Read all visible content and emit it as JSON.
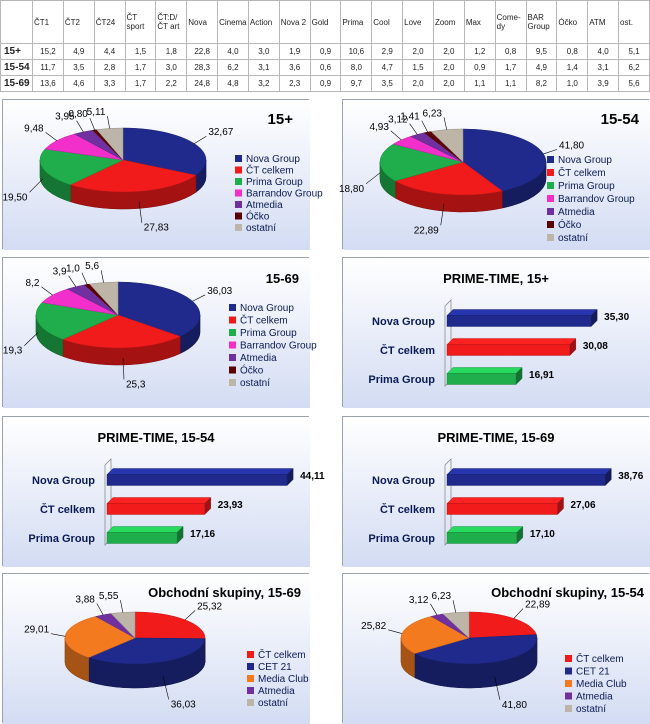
{
  "table": {
    "columns": [
      "",
      "ČT1",
      "ČT2",
      "ČT24",
      "ČT sport",
      "ČT:D/ ČT art",
      "Nova",
      "Cinema",
      "Action",
      "Nova 2",
      "Gold",
      "Prima",
      "Cool",
      "Love",
      "Zoom",
      "Max",
      "Come- dy",
      "BAR Group",
      "Óčko",
      "ATM",
      "ost."
    ],
    "rows": [
      {
        "label": "15+",
        "values": [
          "15,2",
          "4,9",
          "4,4",
          "1,5",
          "1,8",
          "22,8",
          "4,0",
          "3,0",
          "1,9",
          "0,9",
          "10,6",
          "2,9",
          "2,0",
          "2,0",
          "1,2",
          "0,8",
          "9,5",
          "0,8",
          "4,0",
          "5,1"
        ]
      },
      {
        "label": "15-54",
        "values": [
          "11,7",
          "3,5",
          "2,8",
          "1,7",
          "3,0",
          "28,3",
          "6,2",
          "3,1",
          "3,6",
          "0,6",
          "8,0",
          "4,7",
          "1,5",
          "2,0",
          "0,9",
          "1,7",
          "4,9",
          "1,4",
          "3,1",
          "6,2"
        ]
      },
      {
        "label": "15-69",
        "values": [
          "13,6",
          "4,6",
          "3,3",
          "1,7",
          "2,2",
          "24,8",
          "4,8",
          "3,2",
          "2,3",
          "0,9",
          "9,7",
          "3,5",
          "2,0",
          "2,0",
          "1,1",
          "1,1",
          "8,2",
          "1,0",
          "3,9",
          "5,6"
        ]
      }
    ]
  },
  "colors": {
    "nova": "#1f2a8c",
    "ct": "#f21b1b",
    "prima": "#1fae4b",
    "barrandov": "#f22ecb",
    "atmedia": "#7030a0",
    "ocko": "#5a0000",
    "ostatni": "#bdb5a8",
    "media_club": "#f47a20"
  },
  "chart_data": [
    {
      "type": "pie",
      "title": "15+",
      "labels": [
        "Nova Group",
        "ČT celkem",
        "Prima Group",
        "Barrandov Group",
        "Atmedia",
        "Óčko",
        "ostatní"
      ],
      "color_keys": [
        "nova",
        "ct",
        "prima",
        "barrandov",
        "atmedia",
        "ocko",
        "ostatni"
      ],
      "values": [
        32.67,
        27.83,
        19.5,
        9.48,
        3.95,
        0.8,
        5.11
      ],
      "value_labels": [
        "32,67",
        "27,83",
        "19,50",
        "9,48",
        "3,95",
        "0,80",
        "5,11"
      ],
      "legend": "right"
    },
    {
      "type": "pie",
      "title": "15-54",
      "labels": [
        "Nova Group",
        "ČT celkem",
        "Prima Group",
        "Barrandov Group",
        "Atmedia",
        "Óčko",
        "ostatní"
      ],
      "color_keys": [
        "nova",
        "ct",
        "prima",
        "barrandov",
        "atmedia",
        "ocko",
        "ostatni"
      ],
      "values": [
        41.8,
        22.89,
        18.8,
        4.93,
        3.12,
        1.41,
        6.23
      ],
      "value_labels": [
        "41,80",
        "22,89",
        "18,80",
        "4,93",
        "3,12",
        "1,41",
        "6,23"
      ],
      "legend": "right"
    },
    {
      "type": "pie",
      "title": "15-69",
      "labels": [
        "Nova Group",
        "ČT celkem",
        "Prima Group",
        "Barrandov Group",
        "Atmedia",
        "Óčko",
        "ostatní"
      ],
      "color_keys": [
        "nova",
        "ct",
        "prima",
        "barrandov",
        "atmedia",
        "ocko",
        "ostatni"
      ],
      "values": [
        36.03,
        25.3,
        19.3,
        8.2,
        3.9,
        1.0,
        5.6
      ],
      "value_labels": [
        "36,03",
        "25,3",
        "19,3",
        "8,2",
        "3,9",
        "1,0",
        "5,6"
      ],
      "legend": "right"
    },
    {
      "type": "bar",
      "title": "PRIME-TIME,  15+",
      "categories": [
        "Nova Group",
        "ČT celkem",
        "Prima Group"
      ],
      "color_keys": [
        "nova",
        "ct",
        "prima"
      ],
      "values": [
        35.3,
        30.08,
        16.91
      ],
      "value_labels": [
        "35,30",
        "30,08",
        "16,91"
      ],
      "xlim": [
        0,
        48
      ]
    },
    {
      "type": "bar",
      "title": "PRIME-TIME,  15-54",
      "categories": [
        "Nova Group",
        "ČT celkem",
        "Prima Group"
      ],
      "color_keys": [
        "nova",
        "ct",
        "prima"
      ],
      "values": [
        44.11,
        23.93,
        17.16
      ],
      "value_labels": [
        "44,11",
        "23,93",
        "17,16"
      ],
      "xlim": [
        0,
        48
      ]
    },
    {
      "type": "bar",
      "title": "PRIME-TIME,  15-69",
      "categories": [
        "Nova Group",
        "ČT celkem",
        "Prima Group"
      ],
      "color_keys": [
        "nova",
        "ct",
        "prima"
      ],
      "values": [
        38.76,
        27.06,
        17.1
      ],
      "value_labels": [
        "38,76",
        "27,06",
        "17,10"
      ],
      "xlim": [
        0,
        48
      ]
    },
    {
      "type": "pie",
      "title": "Obchodní skupiny, 15-69",
      "labels": [
        "ČT celkem",
        "CET 21",
        "Media Club",
        "Atmedia",
        "ostatní"
      ],
      "color_keys": [
        "ct",
        "nova",
        "media_club",
        "atmedia",
        "ostatni"
      ],
      "values": [
        25.32,
        36.03,
        29.01,
        3.88,
        5.55
      ],
      "value_labels": [
        "25,32",
        "36,03",
        "29,01",
        "3,88",
        "5,55"
      ],
      "legend": "right"
    },
    {
      "type": "pie",
      "title": "Obchodní skupiny, 15-54",
      "labels": [
        "ČT celkem",
        "CET 21",
        "Media Club",
        "Atmedia",
        "ostatní"
      ],
      "color_keys": [
        "ct",
        "nova",
        "media_club",
        "atmedia",
        "ostatni"
      ],
      "values": [
        22.89,
        41.8,
        25.82,
        3.12,
        6.23
      ],
      "value_labels": [
        "22,89",
        "41,80",
        "25,82",
        "3,12",
        "6,23"
      ],
      "legend": "right"
    }
  ]
}
